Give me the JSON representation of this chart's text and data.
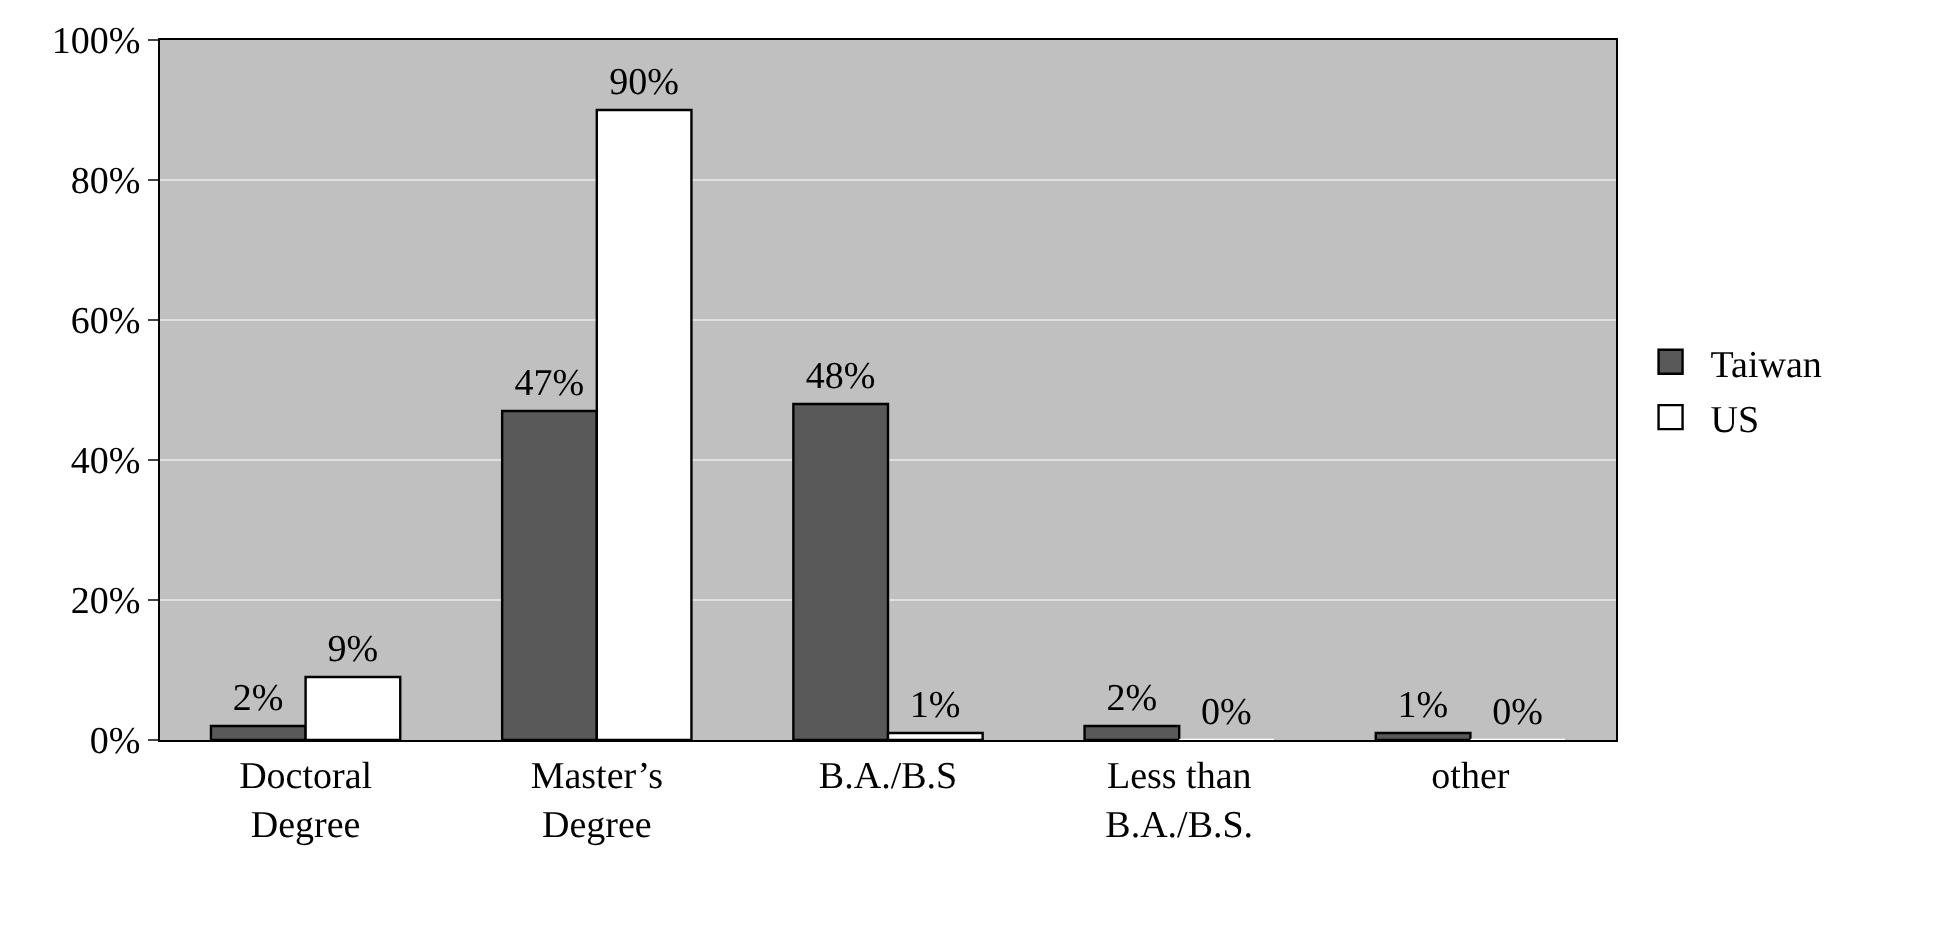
{
  "chart_data": {
    "type": "bar",
    "categories": [
      "Doctoral\nDegree",
      "Master’s\nDegree",
      "B.A./B.S",
      "Less than\nB.A./B.S.",
      "other"
    ],
    "series": [
      {
        "name": "Taiwan",
        "color": "#595959",
        "values": [
          2,
          47,
          48,
          2,
          1
        ],
        "value_labels": [
          "2%",
          "47%",
          "48%",
          "2%",
          "1%"
        ]
      },
      {
        "name": "US",
        "color": "#ffffff",
        "values": [
          9,
          90,
          1,
          0,
          0
        ],
        "value_labels": [
          "9%",
          "90%",
          "1%",
          "0%",
          "0%"
        ]
      }
    ],
    "ylim": [
      0,
      100
    ],
    "yticks": [
      {
        "value": 0,
        "label": "0%"
      },
      {
        "value": 20,
        "label": "20%"
      },
      {
        "value": 40,
        "label": "40%"
      },
      {
        "value": 60,
        "label": "60%"
      },
      {
        "value": 80,
        "label": "80%"
      },
      {
        "value": 100,
        "label": "100%"
      }
    ],
    "grid": "y",
    "legend": "right"
  }
}
